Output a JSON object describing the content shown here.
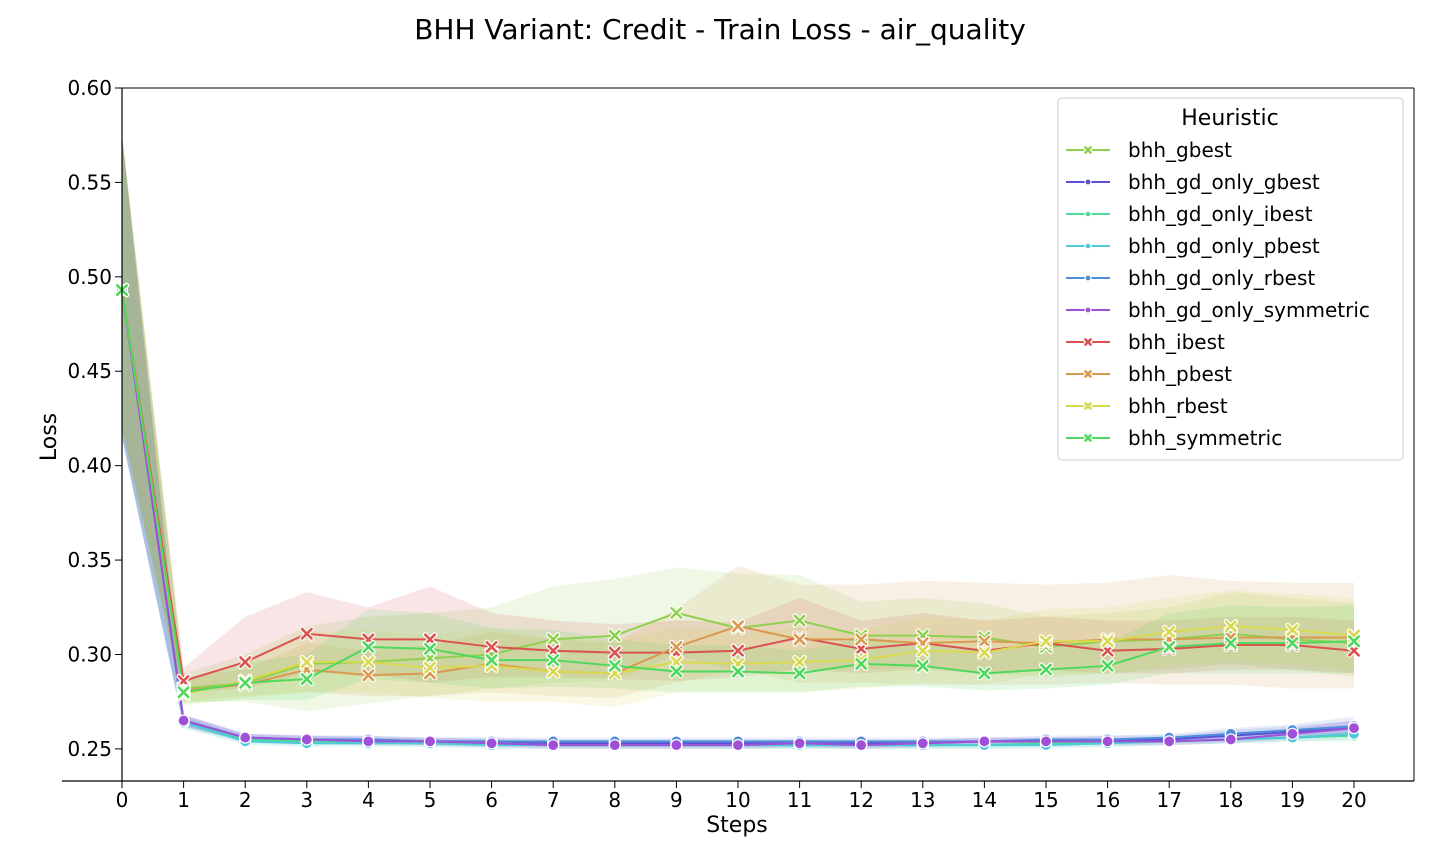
{
  "chart_data": {
    "type": "line",
    "title": "BHH Variant: Credit - Train Loss - air_quality",
    "xlabel": "Steps",
    "ylabel": "Loss",
    "xlim": [
      0,
      20
    ],
    "ylim": [
      0.233,
      0.6
    ],
    "x": [
      0,
      1,
      2,
      3,
      4,
      5,
      6,
      7,
      8,
      9,
      10,
      11,
      12,
      13,
      14,
      15,
      16,
      17,
      18,
      19,
      20
    ],
    "x_ticks": [
      0,
      1,
      2,
      3,
      4,
      5,
      6,
      7,
      8,
      9,
      10,
      11,
      12,
      13,
      14,
      15,
      16,
      17,
      18,
      19,
      20
    ],
    "y_ticks": [
      0.25,
      0.3,
      0.35,
      0.4,
      0.45,
      0.5,
      0.55,
      0.6
    ],
    "y_tick_labels": [
      "0.25",
      "0.30",
      "0.35",
      "0.40",
      "0.45",
      "0.50",
      "0.55",
      "0.60"
    ],
    "grid": false,
    "legend": {
      "title": "Heuristic",
      "placement": "top-right"
    },
    "series": [
      {
        "name": "bhh_gbest",
        "color": "#8fd14f",
        "marker": "x",
        "values": [
          0.493,
          0.282,
          0.285,
          0.295,
          0.296,
          0.298,
          0.3,
          0.308,
          0.31,
          0.322,
          0.314,
          0.318,
          0.31,
          0.31,
          0.309,
          0.304,
          0.307,
          0.308,
          0.311,
          0.308,
          0.306
        ],
        "band_lo": [
          0.42,
          0.275,
          0.275,
          0.27,
          0.274,
          0.278,
          0.282,
          0.285,
          0.286,
          0.3,
          0.29,
          0.292,
          0.292,
          0.293,
          0.29,
          0.288,
          0.29,
          0.292,
          0.295,
          0.292,
          0.288
        ],
        "band_hi": [
          0.575,
          0.29,
          0.3,
          0.315,
          0.32,
          0.322,
          0.325,
          0.336,
          0.34,
          0.346,
          0.343,
          0.342,
          0.328,
          0.33,
          0.327,
          0.32,
          0.322,
          0.325,
          0.333,
          0.33,
          0.327
        ]
      },
      {
        "name": "bhh_gd_only_gbest",
        "color": "#5c4fd9",
        "marker": "o",
        "values": [
          0.493,
          0.265,
          0.256,
          0.255,
          0.255,
          0.254,
          0.254,
          0.253,
          0.253,
          0.253,
          0.253,
          0.253,
          0.253,
          0.253,
          0.254,
          0.254,
          0.255,
          0.255,
          0.257,
          0.259,
          0.261
        ],
        "band_lo": [
          0.415,
          0.262,
          0.254,
          0.253,
          0.253,
          0.252,
          0.252,
          0.251,
          0.251,
          0.251,
          0.251,
          0.251,
          0.251,
          0.251,
          0.252,
          0.252,
          0.253,
          0.253,
          0.254,
          0.256,
          0.257
        ],
        "band_hi": [
          0.575,
          0.268,
          0.258,
          0.257,
          0.257,
          0.256,
          0.256,
          0.255,
          0.255,
          0.255,
          0.255,
          0.255,
          0.255,
          0.255,
          0.256,
          0.256,
          0.257,
          0.257,
          0.26,
          0.262,
          0.265
        ]
      },
      {
        "name": "bhh_gd_only_ibest",
        "color": "#4fd99a",
        "marker": "o",
        "values": [
          0.493,
          0.264,
          0.255,
          0.254,
          0.254,
          0.253,
          0.253,
          0.252,
          0.252,
          0.252,
          0.252,
          0.252,
          0.252,
          0.252,
          0.252,
          0.253,
          0.253,
          0.254,
          0.255,
          0.256,
          0.257
        ],
        "band_lo": [
          0.415,
          0.261,
          0.253,
          0.252,
          0.252,
          0.251,
          0.251,
          0.25,
          0.25,
          0.25,
          0.25,
          0.25,
          0.25,
          0.25,
          0.25,
          0.251,
          0.251,
          0.252,
          0.253,
          0.254,
          0.254
        ],
        "band_hi": [
          0.575,
          0.267,
          0.257,
          0.256,
          0.256,
          0.255,
          0.255,
          0.254,
          0.254,
          0.254,
          0.254,
          0.254,
          0.254,
          0.254,
          0.254,
          0.255,
          0.255,
          0.256,
          0.257,
          0.258,
          0.26
        ]
      },
      {
        "name": "bhh_gd_only_pbest",
        "color": "#4fc9d9",
        "marker": "o",
        "values": [
          0.493,
          0.264,
          0.254,
          0.253,
          0.253,
          0.253,
          0.252,
          0.252,
          0.252,
          0.252,
          0.252,
          0.252,
          0.252,
          0.252,
          0.252,
          0.252,
          0.253,
          0.254,
          0.255,
          0.256,
          0.258
        ],
        "band_lo": [
          0.415,
          0.261,
          0.252,
          0.251,
          0.251,
          0.251,
          0.25,
          0.25,
          0.25,
          0.25,
          0.25,
          0.25,
          0.25,
          0.25,
          0.25,
          0.25,
          0.251,
          0.252,
          0.253,
          0.254,
          0.255
        ],
        "band_hi": [
          0.575,
          0.267,
          0.256,
          0.255,
          0.255,
          0.255,
          0.254,
          0.254,
          0.254,
          0.254,
          0.254,
          0.254,
          0.254,
          0.254,
          0.254,
          0.254,
          0.255,
          0.256,
          0.257,
          0.258,
          0.261
        ]
      },
      {
        "name": "bhh_gd_only_rbest",
        "color": "#4f8fd9",
        "marker": "o",
        "values": [
          0.493,
          0.265,
          0.256,
          0.255,
          0.255,
          0.254,
          0.254,
          0.254,
          0.254,
          0.254,
          0.254,
          0.254,
          0.254,
          0.254,
          0.254,
          0.255,
          0.255,
          0.256,
          0.258,
          0.26,
          0.262
        ],
        "band_lo": [
          0.415,
          0.262,
          0.254,
          0.253,
          0.253,
          0.252,
          0.252,
          0.252,
          0.252,
          0.252,
          0.252,
          0.252,
          0.252,
          0.252,
          0.252,
          0.253,
          0.253,
          0.254,
          0.255,
          0.257,
          0.258
        ],
        "band_hi": [
          0.575,
          0.268,
          0.258,
          0.257,
          0.257,
          0.256,
          0.256,
          0.256,
          0.256,
          0.256,
          0.256,
          0.256,
          0.256,
          0.256,
          0.256,
          0.257,
          0.257,
          0.258,
          0.261,
          0.263,
          0.267
        ]
      },
      {
        "name": "bhh_gd_only_symmetric",
        "color": "#a04fd9",
        "marker": "o",
        "values": [
          0.493,
          0.265,
          0.256,
          0.255,
          0.254,
          0.254,
          0.253,
          0.252,
          0.252,
          0.252,
          0.252,
          0.253,
          0.252,
          0.253,
          0.254,
          0.254,
          0.254,
          0.254,
          0.255,
          0.258,
          0.261
        ],
        "band_lo": [
          0.415,
          0.262,
          0.254,
          0.253,
          0.252,
          0.252,
          0.251,
          0.25,
          0.25,
          0.25,
          0.25,
          0.251,
          0.25,
          0.251,
          0.252,
          0.252,
          0.252,
          0.252,
          0.253,
          0.255,
          0.257
        ],
        "band_hi": [
          0.575,
          0.268,
          0.258,
          0.257,
          0.256,
          0.256,
          0.255,
          0.254,
          0.254,
          0.254,
          0.254,
          0.255,
          0.254,
          0.255,
          0.256,
          0.256,
          0.256,
          0.256,
          0.257,
          0.261,
          0.265
        ]
      },
      {
        "name": "bhh_ibest",
        "color": "#d9534f",
        "marker": "x",
        "values": [
          0.493,
          0.286,
          0.296,
          0.311,
          0.308,
          0.308,
          0.304,
          0.302,
          0.301,
          0.301,
          0.302,
          0.309,
          0.303,
          0.306,
          0.302,
          0.306,
          0.302,
          0.303,
          0.305,
          0.305,
          0.302
        ],
        "band_lo": [
          0.42,
          0.28,
          0.282,
          0.29,
          0.29,
          0.285,
          0.288,
          0.288,
          0.287,
          0.286,
          0.288,
          0.292,
          0.29,
          0.292,
          0.29,
          0.292,
          0.29,
          0.29,
          0.292,
          0.292,
          0.29
        ],
        "band_hi": [
          0.575,
          0.293,
          0.32,
          0.333,
          0.325,
          0.336,
          0.322,
          0.318,
          0.316,
          0.318,
          0.317,
          0.33,
          0.318,
          0.322,
          0.318,
          0.32,
          0.318,
          0.318,
          0.32,
          0.32,
          0.318
        ]
      },
      {
        "name": "bhh_pbest",
        "color": "#d99a4f",
        "marker": "x",
        "values": [
          0.493,
          0.281,
          0.284,
          0.292,
          0.289,
          0.29,
          0.295,
          0.291,
          0.29,
          0.304,
          0.315,
          0.308,
          0.308,
          0.306,
          0.307,
          0.306,
          0.308,
          0.308,
          0.309,
          0.309,
          0.309
        ],
        "band_lo": [
          0.42,
          0.275,
          0.278,
          0.28,
          0.278,
          0.278,
          0.28,
          0.278,
          0.277,
          0.285,
          0.292,
          0.285,
          0.285,
          0.284,
          0.284,
          0.284,
          0.285,
          0.284,
          0.284,
          0.282,
          0.282
        ],
        "band_hi": [
          0.575,
          0.288,
          0.292,
          0.306,
          0.302,
          0.305,
          0.312,
          0.308,
          0.306,
          0.324,
          0.347,
          0.337,
          0.337,
          0.339,
          0.338,
          0.337,
          0.338,
          0.342,
          0.339,
          0.338,
          0.338
        ]
      },
      {
        "name": "bhh_rbest",
        "color": "#d9d94f",
        "marker": "x",
        "values": [
          0.493,
          0.279,
          0.286,
          0.296,
          0.296,
          0.293,
          0.294,
          0.291,
          0.29,
          0.296,
          0.295,
          0.296,
          0.297,
          0.302,
          0.301,
          0.307,
          0.307,
          0.312,
          0.315,
          0.313,
          0.31
        ],
        "band_lo": [
          0.42,
          0.273,
          0.277,
          0.28,
          0.28,
          0.277,
          0.275,
          0.275,
          0.272,
          0.28,
          0.28,
          0.28,
          0.282,
          0.285,
          0.284,
          0.29,
          0.29,
          0.294,
          0.296,
          0.295,
          0.292
        ],
        "band_hi": [
          0.575,
          0.286,
          0.296,
          0.312,
          0.313,
          0.31,
          0.314,
          0.308,
          0.308,
          0.314,
          0.312,
          0.314,
          0.313,
          0.32,
          0.318,
          0.324,
          0.325,
          0.33,
          0.334,
          0.332,
          0.33
        ]
      },
      {
        "name": "bhh_symmetric",
        "color": "#4fd95c",
        "marker": "x",
        "values": [
          0.493,
          0.28,
          0.285,
          0.287,
          0.304,
          0.303,
          0.297,
          0.297,
          0.294,
          0.291,
          0.291,
          0.29,
          0.295,
          0.294,
          0.29,
          0.292,
          0.294,
          0.304,
          0.306,
          0.306,
          0.307
        ],
        "band_lo": [
          0.42,
          0.274,
          0.276,
          0.276,
          0.287,
          0.285,
          0.282,
          0.283,
          0.282,
          0.28,
          0.28,
          0.28,
          0.283,
          0.283,
          0.281,
          0.282,
          0.284,
          0.29,
          0.29,
          0.29,
          0.29
        ],
        "band_hi": [
          0.575,
          0.287,
          0.296,
          0.3,
          0.324,
          0.322,
          0.314,
          0.313,
          0.308,
          0.305,
          0.305,
          0.302,
          0.309,
          0.306,
          0.302,
          0.304,
          0.306,
          0.322,
          0.326,
          0.325,
          0.326
        ]
      }
    ]
  }
}
